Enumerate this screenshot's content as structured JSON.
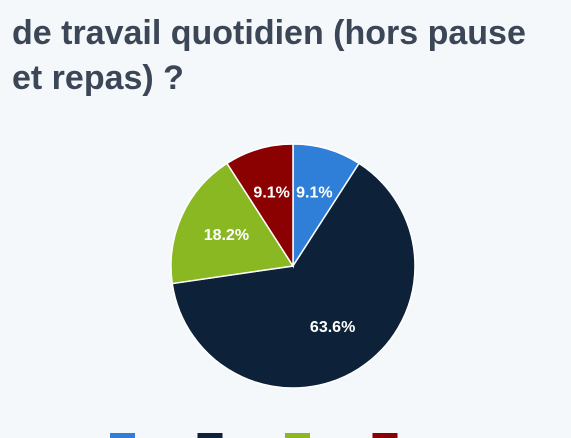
{
  "chart_data": {
    "type": "pie",
    "title_lines": [
      "de travail quotidien (hors pause",
      "et repas) ?"
    ],
    "values": [
      9.1,
      63.6,
      18.2,
      9.1
    ],
    "value_labels": [
      "9.1%",
      "63.6%",
      "18.2%",
      "9.1%"
    ],
    "colors": [
      "#2f7fd8",
      "#0d2138",
      "#8ab822",
      "#8b0000"
    ]
  }
}
